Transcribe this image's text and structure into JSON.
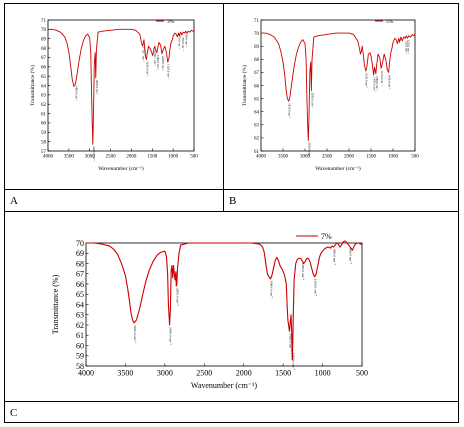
{
  "figure": {
    "panel_labels": [
      "A",
      "B",
      "C"
    ]
  },
  "chart_data": [
    {
      "type": "line",
      "legend": "3%",
      "legend_position": "top-right",
      "xlabel": "Wavenumber (cm⁻¹)",
      "ylabel": "Transmittance (%)",
      "xlim": [
        4000,
        500
      ],
      "ylim": [
        57,
        71
      ],
      "xticks": [
        4000,
        3500,
        3000,
        2500,
        2000,
        1500,
        1000,
        500
      ],
      "yticks": [
        57,
        58,
        59,
        60,
        61,
        62,
        63,
        64,
        65,
        66,
        67,
        68,
        69,
        70,
        71
      ],
      "color": "#cc0000",
      "series": [
        {
          "x": [
            4000,
            3900,
            3800,
            3700,
            3600,
            3550,
            3500,
            3460,
            3420,
            3380,
            3340,
            3300,
            3250,
            3200,
            3150,
            3100,
            3050,
            3000,
            2975,
            2960,
            2940,
            2925,
            2910,
            2890,
            2870,
            2855,
            2840,
            2800,
            2700,
            2500,
            2300,
            2100,
            2000,
            1900,
            1800,
            1760,
            1730,
            1700,
            1680,
            1660,
            1640,
            1620,
            1590,
            1560,
            1520,
            1490,
            1460,
            1440,
            1420,
            1390,
            1370,
            1340,
            1300,
            1270,
            1240,
            1200,
            1160,
            1130,
            1100,
            1080,
            1050,
            1020,
            1000,
            960,
            930,
            900,
            870,
            850,
            820,
            790,
            760,
            720,
            700,
            670,
            640,
            600,
            560,
            520,
            500
          ],
          "y": [
            70.0,
            70.0,
            69.9,
            69.7,
            69.2,
            68.6,
            67.6,
            66.2,
            64.7,
            63.9,
            64.2,
            65.3,
            66.8,
            68.0,
            68.8,
            69.3,
            69.5,
            69.1,
            67.5,
            64.0,
            60.0,
            57.7,
            61.0,
            66.3,
            67.5,
            64.8,
            67.8,
            69.7,
            69.8,
            69.9,
            70.0,
            70.0,
            70.0,
            69.9,
            69.5,
            68.6,
            68.2,
            68.9,
            68.0,
            67.0,
            66.8,
            67.5,
            68.2,
            68.0,
            67.6,
            67.2,
            67.9,
            68.2,
            67.8,
            67.5,
            68.0,
            68.6,
            68.3,
            67.4,
            67.8,
            68.2,
            67.5,
            66.5,
            66.9,
            67.8,
            68.6,
            68.9,
            69.3,
            69.6,
            69.5,
            69.2,
            69.6,
            69.3,
            69.7,
            69.4,
            69.7,
            69.6,
            69.8,
            69.6,
            69.8,
            69.7,
            69.9,
            69.8,
            69.9
          ]
        }
      ],
      "peak_labels": [
        {
          "x": 3340,
          "label": "3400.0 cm⁻¹"
        },
        {
          "x": 2925,
          "label": "2925.0 cm⁻¹"
        },
        {
          "x": 2855,
          "label": "2855.0 cm⁻¹"
        },
        {
          "x": 1740,
          "label": "1739.7 cm⁻¹"
        },
        {
          "x": 1640,
          "label": "1630.0 cm⁻¹"
        },
        {
          "x": 1460,
          "label": "1459.7 cm⁻¹"
        },
        {
          "x": 1390,
          "label": "1380.0 cm⁻¹"
        },
        {
          "x": 1270,
          "label": "1268.0 cm⁻¹"
        },
        {
          "x": 1130,
          "label": "1120.0 cm⁻¹"
        },
        {
          "x": 870,
          "label": "870.0 cm⁻¹"
        },
        {
          "x": 790,
          "label": "790.0 cm⁻¹"
        },
        {
          "x": 700,
          "label": "700.0 cm⁻¹"
        }
      ]
    },
    {
      "type": "line",
      "legend": "5%",
      "legend_position": "top-right",
      "xlabel": "Wavenumber (cm⁻¹)",
      "ylabel": "Transmittance (%)",
      "xlim": [
        4000,
        500
      ],
      "ylim": [
        61,
        71
      ],
      "xticks": [
        4000,
        3500,
        3000,
        2500,
        2000,
        1500,
        1000,
        500
      ],
      "yticks": [
        61,
        62,
        63,
        64,
        65,
        66,
        67,
        68,
        69,
        70,
        71
      ],
      "color": "#cc0000",
      "series": [
        {
          "x": [
            4000,
            3900,
            3800,
            3700,
            3600,
            3550,
            3500,
            3460,
            3430,
            3400,
            3370,
            3340,
            3300,
            3250,
            3200,
            3150,
            3100,
            3050,
            3000,
            2975,
            2960,
            2940,
            2925,
            2910,
            2890,
            2870,
            2855,
            2840,
            2800,
            2700,
            2500,
            2300,
            2100,
            2000,
            1900,
            1800,
            1760,
            1740,
            1720,
            1700,
            1680,
            1650,
            1620,
            1600,
            1580,
            1560,
            1520,
            1490,
            1460,
            1440,
            1420,
            1390,
            1370,
            1340,
            1300,
            1270,
            1240,
            1200,
            1160,
            1130,
            1100,
            1080,
            1050,
            1020,
            1000,
            960,
            930,
            900,
            870,
            850,
            820,
            790,
            760,
            720,
            700,
            670,
            640,
            600,
            560,
            520,
            500
          ],
          "y": [
            70.0,
            70.0,
            69.9,
            69.7,
            69.2,
            68.6,
            67.8,
            66.8,
            65.7,
            65.0,
            64.8,
            65.2,
            66.2,
            67.4,
            68.3,
            68.9,
            69.3,
            69.5,
            69.2,
            68.0,
            65.5,
            63.0,
            61.8,
            63.5,
            67.0,
            67.8,
            65.6,
            68.0,
            69.7,
            69.8,
            69.9,
            70.0,
            70.0,
            70.0,
            69.9,
            69.4,
            68.8,
            68.4,
            68.6,
            69.0,
            68.5,
            67.6,
            67.1,
            67.3,
            67.8,
            68.4,
            68.5,
            68.1,
            67.3,
            66.8,
            67.4,
            66.9,
            67.6,
            68.4,
            68.1,
            67.3,
            67.7,
            68.4,
            67.9,
            67.2,
            67.0,
            67.7,
            68.5,
            68.9,
            69.3,
            69.6,
            69.5,
            69.2,
            69.6,
            69.3,
            69.7,
            69.4,
            69.7,
            69.6,
            69.8,
            69.6,
            69.8,
            69.7,
            69.9,
            69.8,
            69.9
          ]
        }
      ],
      "peak_labels": [
        {
          "x": 3370,
          "label": "3410.0 cm⁻¹"
        },
        {
          "x": 2925,
          "label": "2920.0 cm⁻¹"
        },
        {
          "x": 2855,
          "label": "2850.0 cm⁻¹"
        },
        {
          "x": 1620,
          "label": "1630.0 cm⁻¹"
        },
        {
          "x": 1440,
          "label": "1450.0 cm⁻¹"
        },
        {
          "x": 1390,
          "label": "1380.0 cm⁻¹"
        },
        {
          "x": 1270,
          "label": "1270.0 cm⁻¹"
        },
        {
          "x": 1100,
          "label": "1100.0 cm⁻¹"
        },
        {
          "x": 720,
          "label": "720.0 cm⁻¹"
        },
        {
          "x": 670,
          "label": "670.0 cm⁻¹"
        }
      ]
    },
    {
      "type": "line",
      "legend": "7%",
      "legend_position": "top-right",
      "xlabel": "Wavenumber (cm⁻¹)",
      "ylabel": "Transmittance (%)",
      "xlim": [
        4000,
        500
      ],
      "ylim": [
        58,
        70
      ],
      "xticks": [
        4000,
        3500,
        3000,
        2500,
        2000,
        1500,
        1000,
        500
      ],
      "yticks": [
        58,
        59,
        60,
        61,
        62,
        63,
        64,
        65,
        66,
        67,
        68,
        69,
        70
      ],
      "color": "#cc0000",
      "series": [
        {
          "x": [
            4000,
            3900,
            3800,
            3700,
            3650,
            3600,
            3550,
            3500,
            3470,
            3450,
            3430,
            3410,
            3390,
            3360,
            3320,
            3280,
            3240,
            3200,
            3150,
            3100,
            3050,
            3000,
            2980,
            2965,
            2955,
            2940,
            2930,
            2920,
            2910,
            2900,
            2890,
            2880,
            2870,
            2860,
            2855,
            2848,
            2840,
            2820,
            2800,
            2700,
            2600,
            2500,
            2400,
            2300,
            2200,
            2100,
            2000,
            1900,
            1800,
            1760,
            1740,
            1720,
            1700,
            1680,
            1660,
            1640,
            1620,
            1600,
            1580,
            1560,
            1540,
            1510,
            1480,
            1460,
            1450,
            1440,
            1420,
            1400,
            1390,
            1385,
            1380,
            1375,
            1370,
            1360,
            1340,
            1320,
            1300,
            1280,
            1260,
            1240,
            1220,
            1200,
            1180,
            1160,
            1140,
            1120,
            1100,
            1080,
            1060,
            1040,
            1020,
            1000,
            980,
            960,
            940,
            920,
            900,
            880,
            860,
            840,
            820,
            800,
            780,
            760,
            740,
            720,
            700,
            680,
            660,
            640,
            620,
            600,
            580,
            560,
            540,
            520,
            500
          ],
          "y": [
            70.0,
            70.0,
            69.9,
            69.7,
            69.4,
            68.9,
            68.0,
            66.8,
            65.5,
            64.4,
            63.2,
            62.5,
            62.2,
            62.5,
            63.6,
            65.0,
            66.3,
            67.3,
            68.2,
            68.8,
            69.1,
            69.2,
            68.7,
            67.0,
            64.0,
            62.0,
            63.5,
            67.3,
            67.8,
            66.6,
            67.8,
            67.0,
            66.4,
            67.2,
            65.8,
            66.0,
            67.5,
            69.0,
            69.8,
            70.0,
            70.0,
            70.0,
            70.0,
            70.0,
            70.0,
            70.0,
            70.0,
            70.0,
            69.9,
            69.6,
            69.1,
            68.0,
            67.0,
            66.7,
            66.5,
            66.9,
            67.6,
            68.3,
            68.6,
            68.3,
            67.8,
            67.4,
            66.8,
            66.0,
            64.0,
            62.5,
            61.4,
            63.0,
            61.0,
            58.6,
            59.5,
            61.5,
            63.5,
            66.5,
            68.0,
            68.4,
            68.5,
            68.5,
            68.3,
            68.0,
            68.2,
            68.5,
            68.5,
            68.2,
            67.6,
            67.0,
            66.7,
            67.0,
            67.8,
            68.6,
            69.0,
            69.2,
            69.4,
            69.5,
            69.6,
            69.6,
            69.5,
            69.7,
            69.6,
            69.8,
            70.0,
            69.9,
            69.6,
            69.8,
            70.1,
            70.2,
            70.1,
            69.9,
            69.7,
            69.5,
            69.3,
            69.7,
            69.9,
            70.0,
            70.0,
            69.9,
            69.9
          ]
        }
      ],
      "peak_labels": [
        {
          "x": 3390,
          "label": "3420.0 cm⁻¹"
        },
        {
          "x": 2940,
          "label": "2940.0 cm⁻¹"
        },
        {
          "x": 2855,
          "label": "2855.0 cm⁻¹"
        },
        {
          "x": 1660,
          "label": "1660.0 cm⁻¹"
        },
        {
          "x": 1420,
          "label": "1420.0 cm⁻¹"
        },
        {
          "x": 1380,
          "label": "1380.0 cm⁻¹"
        },
        {
          "x": 1260,
          "label": "1260.0 cm⁻¹"
        },
        {
          "x": 1100,
          "label": "1100.0 cm⁻¹"
        },
        {
          "x": 860,
          "label": "860.0 cm⁻¹"
        },
        {
          "x": 660,
          "label": "660.0 cm⁻¹"
        }
      ]
    }
  ]
}
